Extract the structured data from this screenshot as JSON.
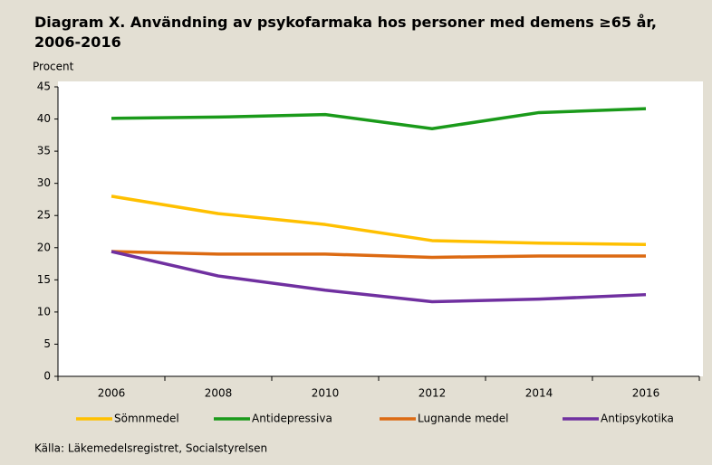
{
  "chart_data": {
    "type": "line",
    "title": "Diagram X. Användning av psykofarmaka hos personer med demens ≥65 år, 2006-2016",
    "y_label": "Procent",
    "source": "Källa: Läkemedelsregistret, Socialstyrelsen",
    "categories": [
      "2006",
      "2008",
      "2010",
      "2012",
      "2014",
      "2016"
    ],
    "series": [
      {
        "name": "Sömnmedel",
        "color": "#ffc000",
        "values": [
          28.0,
          25.3,
          23.6,
          21.1,
          20.7,
          20.5
        ]
      },
      {
        "name": "Antidepressiva",
        "color": "#1a9a1a",
        "values": [
          40.1,
          40.3,
          40.7,
          38.5,
          41.0,
          41.6
        ]
      },
      {
        "name": "Lugnande medel",
        "color": "#dc6a12",
        "values": [
          19.4,
          19.0,
          19.0,
          18.5,
          18.7,
          18.7
        ]
      },
      {
        "name": "Antipsykotika",
        "color": "#7030a0",
        "values": [
          19.4,
          15.6,
          13.4,
          11.6,
          12.0,
          12.7
        ]
      }
    ],
    "ylim": [
      0,
      45
    ],
    "yticks": [
      0,
      5,
      10,
      15,
      20,
      25,
      30,
      35,
      40,
      45
    ],
    "grid": false,
    "legend": "bottom"
  }
}
